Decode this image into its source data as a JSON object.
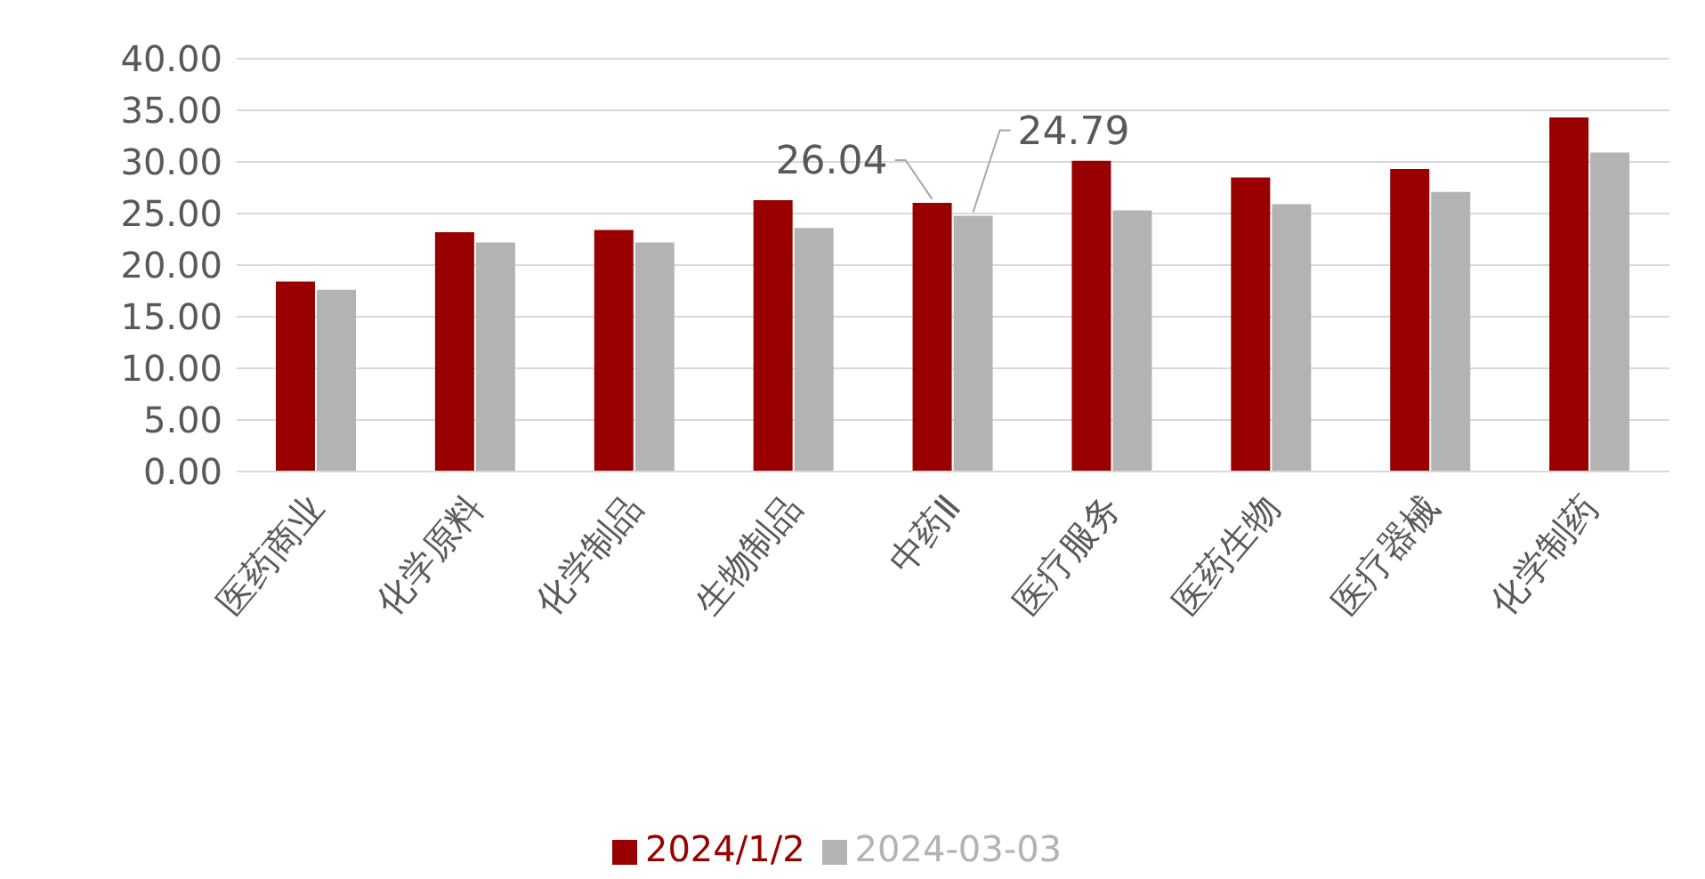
{
  "chart_data": {
    "type": "bar",
    "categories": [
      "医药商业",
      "化学原料",
      "化学制品",
      "生物制品",
      "中药Ⅱ",
      "医疗服务",
      "医药生物",
      "医疗器械",
      "化学制药"
    ],
    "series": [
      {
        "name": "2024/1/2",
        "color": "#990000",
        "values": [
          18.4,
          23.2,
          23.4,
          26.3,
          26.04,
          30.1,
          28.5,
          29.3,
          34.3
        ],
        "value_labels": [
          null,
          null,
          null,
          null,
          "26.04",
          null,
          null,
          null,
          null
        ]
      },
      {
        "name": "2024-03-03",
        "color": "#b3b3b3",
        "values": [
          17.6,
          22.2,
          22.2,
          23.6,
          24.79,
          25.3,
          25.9,
          27.1,
          30.9
        ],
        "value_labels": [
          null,
          null,
          null,
          null,
          "24.79",
          null,
          null,
          null,
          null
        ]
      }
    ],
    "ylim": [
      0,
      40
    ],
    "yticks": [
      {
        "value": 0,
        "label": "0.00"
      },
      {
        "value": 5,
        "label": "5.00"
      },
      {
        "value": 10,
        "label": "10.00"
      },
      {
        "value": 15,
        "label": "15.00"
      },
      {
        "value": 20,
        "label": "20.00"
      },
      {
        "value": 25,
        "label": "25.00"
      },
      {
        "value": 30,
        "label": "30.00"
      },
      {
        "value": 35,
        "label": "35.00"
      },
      {
        "value": 40,
        "label": "40.00"
      }
    ],
    "grid": "y",
    "legend": "bottom"
  }
}
